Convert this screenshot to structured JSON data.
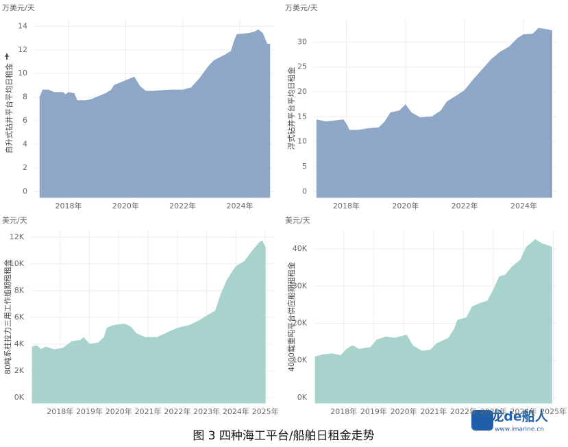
{
  "chart_data": [
    {
      "type": "area",
      "subtitle": "万美元/天",
      "ylabel": "自升式钻井平台平均日租金",
      "color": "#8ea7c6",
      "x": [
        2017.0,
        2017.1,
        2017.3,
        2017.5,
        2017.8,
        2017.9,
        2018.0,
        2018.2,
        2018.3,
        2018.6,
        2018.8,
        2019.0,
        2019.3,
        2019.5,
        2019.6,
        2019.9,
        2020.2,
        2020.3,
        2020.5,
        2020.7,
        2021.0,
        2021.5,
        2022.0,
        2022.3,
        2022.6,
        2022.9,
        2023.1,
        2023.5,
        2023.7,
        2023.8,
        2023.9,
        2024.3,
        2024.5,
        2024.65,
        2024.8,
        2024.95,
        2025.05
      ],
      "values": [
        8.0,
        8.6,
        8.6,
        8.4,
        8.4,
        8.2,
        8.4,
        8.3,
        7.7,
        7.7,
        7.8,
        8.0,
        8.3,
        8.6,
        9.0,
        9.3,
        9.6,
        9.7,
        8.9,
        8.5,
        8.5,
        8.6,
        8.6,
        8.8,
        9.6,
        10.6,
        11.1,
        11.6,
        11.9,
        12.7,
        13.3,
        13.4,
        13.5,
        13.7,
        13.4,
        12.5,
        12.5
      ],
      "xlim": [
        2016.8,
        2025.2
      ],
      "ylim": [
        -0.5,
        14.6
      ],
      "xticks": [
        {
          "value": 2018,
          "label": "2018年"
        },
        {
          "value": 2020,
          "label": "2020年"
        },
        {
          "value": 2022,
          "label": "2022年"
        },
        {
          "value": 2024,
          "label": "2024年"
        }
      ],
      "yticks": [
        0,
        2,
        4,
        6,
        8,
        10,
        12,
        14
      ],
      "grid": true
    },
    {
      "type": "area",
      "subtitle": "万美元/天",
      "ylabel": "浮式钻井平台平均日租金",
      "color": "#8ea7c6",
      "x": [
        2017.0,
        2017.3,
        2017.6,
        2017.9,
        2018.0,
        2018.1,
        2018.4,
        2018.7,
        2019.1,
        2019.3,
        2019.5,
        2019.8,
        2020.0,
        2020.2,
        2020.5,
        2020.9,
        2021.2,
        2021.4,
        2021.8,
        2022.0,
        2022.3,
        2022.6,
        2022.9,
        2023.2,
        2023.5,
        2023.8,
        2024.0,
        2024.3,
        2024.5,
        2024.8,
        2024.95
      ],
      "values": [
        14.4,
        14.0,
        14.2,
        14.4,
        13.5,
        12.3,
        12.3,
        12.6,
        12.8,
        14.0,
        15.8,
        16.2,
        17.4,
        15.8,
        14.8,
        15.0,
        16.2,
        18.0,
        19.5,
        20.3,
        22.5,
        24.5,
        26.5,
        28.0,
        29.0,
        30.8,
        31.5,
        31.6,
        32.8,
        32.5,
        32.3
      ],
      "xlim": [
        2016.9,
        2025.1
      ],
      "ylim": [
        -1.2,
        34.6
      ],
      "xticks": [
        {
          "value": 2018,
          "label": "2018年"
        },
        {
          "value": 2020,
          "label": "2020年"
        },
        {
          "value": 2022,
          "label": "2022年"
        },
        {
          "value": 2024,
          "label": "2024年"
        }
      ],
      "yticks": [
        0,
        5,
        10,
        15,
        20,
        25,
        30
      ],
      "grid": true
    },
    {
      "type": "area",
      "subtitle": "美元/天",
      "ylabel": "80吨系柱拉力三用工作船期租租金",
      "color": "#a8d3cc",
      "x": [
        2017.05,
        2017.2,
        2017.35,
        2017.5,
        2017.8,
        2018.1,
        2018.4,
        2018.7,
        2018.8,
        2019.0,
        2019.3,
        2019.5,
        2019.6,
        2019.8,
        2020.2,
        2020.4,
        2020.6,
        2020.9,
        2021.3,
        2021.6,
        2022.0,
        2022.4,
        2022.7,
        2023.0,
        2023.3,
        2023.5,
        2023.7,
        2024.0,
        2024.3,
        2024.5,
        2024.8,
        2024.9,
        2025.0
      ],
      "values": [
        3800,
        3900,
        3600,
        3800,
        3600,
        3700,
        4200,
        4300,
        4500,
        4000,
        4100,
        4500,
        5200,
        5400,
        5500,
        5300,
        4800,
        4500,
        4500,
        4800,
        5200,
        5400,
        5700,
        6100,
        6500,
        7800,
        8800,
        9800,
        10200,
        10800,
        11600,
        11700,
        11200
      ],
      "xlim": [
        2017.0,
        2025.3
      ],
      "ylim": [
        -400,
        12500
      ],
      "xticks": [
        {
          "value": 2018,
          "label": "2018年"
        },
        {
          "value": 2019,
          "label": "2019年"
        },
        {
          "value": 2020,
          "label": "2020年"
        },
        {
          "value": 2021,
          "label": "2021年"
        },
        {
          "value": 2022,
          "label": "2022年"
        },
        {
          "value": 2023,
          "label": "2023年"
        },
        {
          "value": 2024,
          "label": "2024年"
        },
        {
          "value": 2025,
          "label": "2025年"
        }
      ],
      "yticks": [
        {
          "value": 0,
          "label": "0K"
        },
        {
          "value": 2000,
          "label": "2K"
        },
        {
          "value": 4000,
          "label": "4K"
        },
        {
          "value": 6000,
          "label": "6K"
        },
        {
          "value": 8000,
          "label": "8K"
        },
        {
          "value": 10000,
          "label": "10K"
        },
        {
          "value": 12000,
          "label": "12K"
        }
      ],
      "grid": true
    },
    {
      "type": "area",
      "subtitle": "美元/天",
      "ylabel": "4000载重吨平台供应船期租租金",
      "color": "#a8d3cc",
      "x": [
        2017.05,
        2017.3,
        2017.6,
        2017.9,
        2018.1,
        2018.3,
        2018.5,
        2018.9,
        2019.1,
        2019.4,
        2019.7,
        2020.1,
        2020.3,
        2020.6,
        2020.9,
        2021.1,
        2021.5,
        2021.7,
        2021.8,
        2022.1,
        2022.3,
        2022.6,
        2022.8,
        2023.0,
        2023.2,
        2023.4,
        2023.6,
        2023.9,
        2024.1,
        2024.4,
        2024.6,
        2024.95
      ],
      "values": [
        11000,
        11500,
        11800,
        11300,
        13000,
        14000,
        13000,
        13500,
        15500,
        16300,
        16000,
        16800,
        14000,
        12500,
        12800,
        14500,
        16000,
        18500,
        20800,
        21500,
        24500,
        25500,
        26000,
        29000,
        32500,
        33000,
        35000,
        37000,
        40500,
        42500,
        41500,
        40500
      ],
      "xlim": [
        2017.0,
        2025.1
      ],
      "ylim": [
        -1500,
        45000
      ],
      "xticks": [
        {
          "value": 2018,
          "label": "2018年"
        },
        {
          "value": 2019,
          "label": "2019年"
        },
        {
          "value": 2020,
          "label": "2020年"
        },
        {
          "value": 2021,
          "label": "2021年"
        },
        {
          "value": 2022,
          "label": "2022年"
        },
        {
          "value": 2023,
          "label": "2023年"
        },
        {
          "value": 2024,
          "label": "2024年"
        },
        {
          "value": 2025,
          "label": "2025年"
        }
      ],
      "yticks": [
        {
          "value": 0,
          "label": "0K"
        },
        {
          "value": 10000,
          "label": "10K"
        },
        {
          "value": 20000,
          "label": "20K"
        },
        {
          "value": 30000,
          "label": "30K"
        },
        {
          "value": 40000,
          "label": "40K"
        }
      ],
      "grid": true
    }
  ],
  "caption": "图 3 四种海工平台/船舶日租金走势",
  "watermark": {
    "logo": "龙de船人",
    "url": "www.imarine.cn"
  }
}
